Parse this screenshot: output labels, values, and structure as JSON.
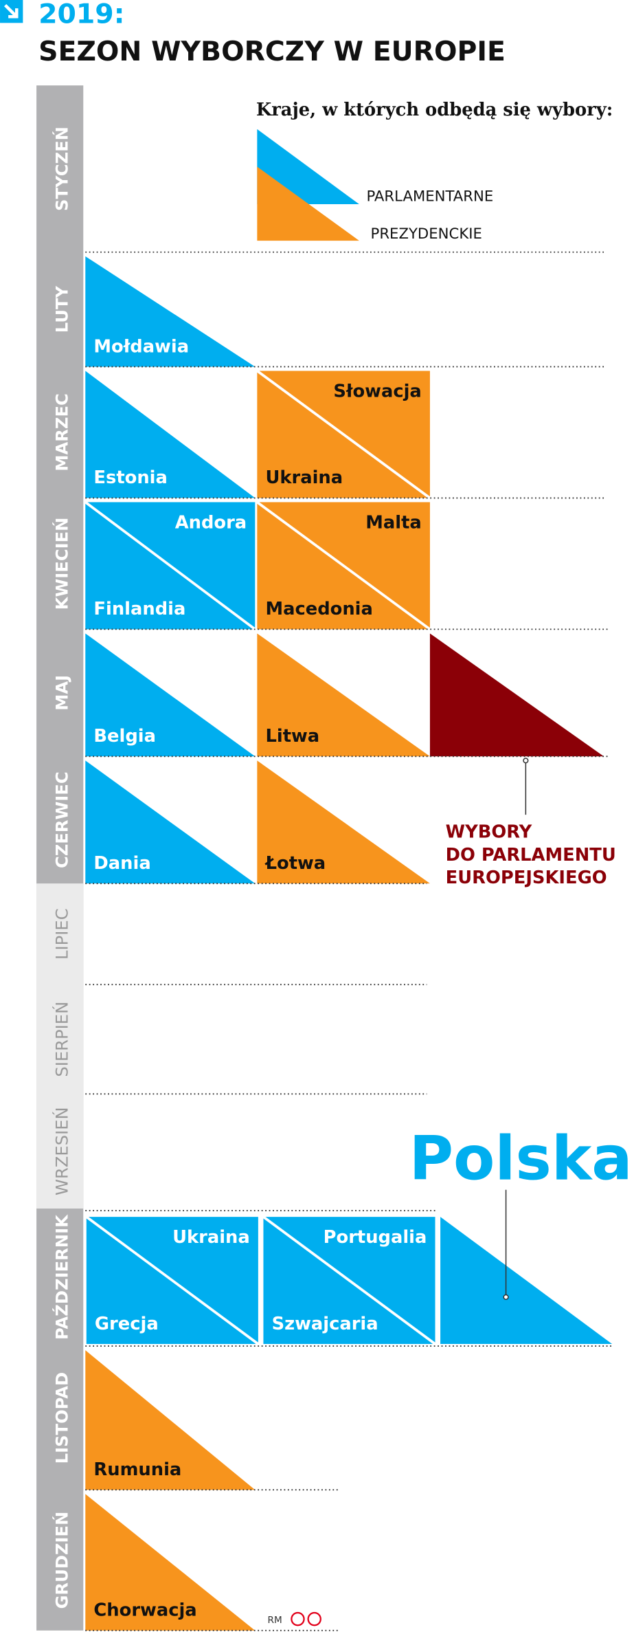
{
  "header": {
    "year": "2019:",
    "title": "SEZON WYBORCZY W EUROPIE"
  },
  "legend": {
    "title": "Kraje, w których odbędą się wybory:",
    "items": [
      {
        "label": "PARLAMENTARNE",
        "color": "#00aeef"
      },
      {
        "label": "PREZYDENCKIE",
        "color": "#f7941d"
      }
    ]
  },
  "months": [
    {
      "name": "STYCZEŃ",
      "cells": []
    },
    {
      "name": "LUTY",
      "cells": [
        {
          "shape": "triangle",
          "color": "#00aeef",
          "labels": [
            "Mołdawia"
          ]
        }
      ]
    },
    {
      "name": "MARZEC",
      "cells": [
        {
          "shape": "triangle",
          "color": "#00aeef",
          "labels": [
            "Estonia"
          ]
        },
        {
          "shape": "split",
          "color": "#f7941d",
          "labels": [
            "Słowacja",
            "Ukraina"
          ]
        }
      ]
    },
    {
      "name": "KWIECIEŃ",
      "cells": [
        {
          "shape": "split",
          "color": "#00aeef",
          "labels": [
            "Andora",
            "Finlandia"
          ]
        },
        {
          "shape": "split",
          "color": "#f7941d",
          "labels": [
            "Malta",
            "Macedonia"
          ]
        }
      ]
    },
    {
      "name": "MAJ",
      "cells": [
        {
          "shape": "triangle",
          "color": "#00aeef",
          "labels": [
            "Belgia"
          ]
        },
        {
          "shape": "triangle",
          "color": "#f7941d",
          "labels": [
            "Litwa"
          ]
        },
        {
          "shape": "triangle",
          "color": "#8b0007",
          "labels": []
        }
      ]
    },
    {
      "name": "CZERWIEC",
      "cells": [
        {
          "shape": "triangle",
          "color": "#00aeef",
          "labels": [
            "Dania"
          ]
        },
        {
          "shape": "triangle",
          "color": "#f7941d",
          "labels": [
            "Łotwa"
          ]
        }
      ]
    },
    {
      "name": "LIPIEC",
      "cells": []
    },
    {
      "name": "SIERPIEŃ",
      "cells": []
    },
    {
      "name": "WRZESIEŃ",
      "cells": []
    },
    {
      "name": "PAŹDZIERNIK",
      "cells": [
        {
          "shape": "split",
          "color": "#00aeef",
          "labels": [
            "Ukraina",
            "Grecja"
          ]
        },
        {
          "shape": "split",
          "color": "#00aeef",
          "labels": [
            "Portugalia",
            "Szwajcaria"
          ]
        },
        {
          "shape": "triangle",
          "color": "#00aeef",
          "labels": []
        }
      ]
    },
    {
      "name": "LISTOPAD",
      "cells": [
        {
          "shape": "triangle",
          "color": "#f7941d",
          "labels": [
            "Rumunia"
          ]
        }
      ]
    },
    {
      "name": "GRUDZIEŃ",
      "cells": [
        {
          "shape": "triangle",
          "color": "#f7941d",
          "labels": [
            "Chorwacja"
          ]
        }
      ]
    }
  ],
  "annotations": {
    "european_parliament": [
      "WYBORY",
      "DO PARLAMENTU",
      "EUROPEJSKIEGO"
    ],
    "poland": "Polska",
    "credit": "RM"
  }
}
